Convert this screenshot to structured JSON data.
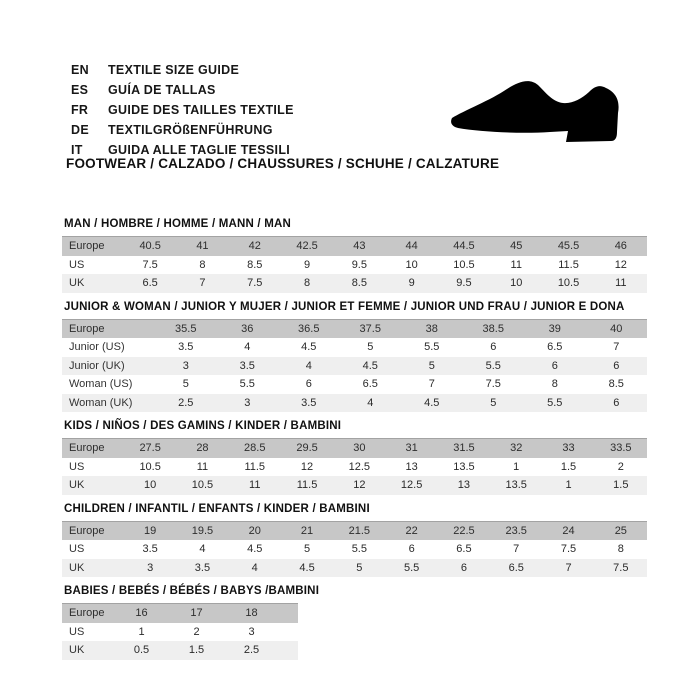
{
  "header": {
    "languages": [
      {
        "code": "EN",
        "text": "TEXTILE SIZE GUIDE"
      },
      {
        "code": "ES",
        "text": "GUÍA DE TALLAS"
      },
      {
        "code": "FR",
        "text": "GUIDE DES TAILLES TEXTILE"
      },
      {
        "code": "DE",
        "text": "TEXTILGRÖßENFÜHRUNG"
      },
      {
        "code": "IT",
        "text": "GUIDA ALLE TAGLIE TESSILI"
      }
    ],
    "category_heading": "FOOTWEAR / CALZADO / CHAUSSURES / SCHUHE / CALZATURE",
    "icon": "dress-shoe-silhouette"
  },
  "colors": {
    "background": "#ffffff",
    "header_row_bg": "#c7c7c7",
    "alt_row_bg": "#efefef",
    "text": "#1c1c1c",
    "shoe_icon": "#000000"
  },
  "chart_data": [
    {
      "type": "table",
      "title": "MAN / HOMBRE / HOMME / MANN / MAN",
      "header": {
        "label": "Europe",
        "values": [
          "40.5",
          "41",
          "42",
          "42.5",
          "43",
          "44",
          "44.5",
          "45",
          "45.5",
          "46"
        ]
      },
      "rows": [
        {
          "label": "US",
          "values": [
            "7.5",
            "8",
            "8.5",
            "9",
            "9.5",
            "10",
            "10.5",
            "11",
            "11.5",
            "12"
          ]
        },
        {
          "label": "UK",
          "values": [
            "6.5",
            "7",
            "7.5",
            "8",
            "8.5",
            "9",
            "9.5",
            "10",
            "10.5",
            "11"
          ]
        }
      ]
    },
    {
      "type": "table",
      "title": "JUNIOR & WOMAN / JUNIOR Y MUJER / JUNIOR ET FEMME / JUNIOR UND FRAU / JUNIOR E DONA",
      "header": {
        "label": "Europe",
        "values": [
          "35.5",
          "36",
          "36.5",
          "37.5",
          "38",
          "38.5",
          "39",
          "40"
        ]
      },
      "rows": [
        {
          "label": "Junior (US)",
          "values": [
            "3.5",
            "4",
            "4.5",
            "5",
            "5.5",
            "6",
            "6.5",
            "7"
          ]
        },
        {
          "label": "Junior (UK)",
          "values": [
            "3",
            "3.5",
            "4",
            "4.5",
            "5",
            "5.5",
            "6",
            "6"
          ]
        },
        {
          "label": "Woman (US)",
          "values": [
            "5",
            "5.5",
            "6",
            "6.5",
            "7",
            "7.5",
            "8",
            "8.5"
          ]
        },
        {
          "label": "Woman (UK)",
          "values": [
            "2.5",
            "3",
            "3.5",
            "4",
            "4.5",
            "5",
            "5.5",
            "6"
          ]
        }
      ]
    },
    {
      "type": "table",
      "title": "KIDS / NIÑOS / DES GAMINS / KINDER / BAMBINI",
      "header": {
        "label": "Europe",
        "values": [
          "27.5",
          "28",
          "28.5",
          "29.5",
          "30",
          "31",
          "31.5",
          "32",
          "33",
          "33.5"
        ]
      },
      "rows": [
        {
          "label": "US",
          "values": [
            "10.5",
            "11",
            "11.5",
            "12",
            "12.5",
            "13",
            "13.5",
            "1",
            "1.5",
            "2"
          ]
        },
        {
          "label": "UK",
          "values": [
            "10",
            "10.5",
            "11",
            "11.5",
            "12",
            "12.5",
            "13",
            "13.5",
            "1",
            "1.5"
          ]
        }
      ]
    },
    {
      "type": "table",
      "title": "CHILDREN / INFANTIL / ENFANTS / KINDER / BAMBINI",
      "header": {
        "label": "Europe",
        "values": [
          "19",
          "19.5",
          "20",
          "21",
          "21.5",
          "22",
          "22.5",
          "23.5",
          "24",
          "25"
        ]
      },
      "rows": [
        {
          "label": "US",
          "values": [
            "3.5",
            "4",
            "4.5",
            "5",
            "5.5",
            "6",
            "6.5",
            "7",
            "7.5",
            "8"
          ]
        },
        {
          "label": "UK",
          "values": [
            "3",
            "3.5",
            "4",
            "4.5",
            "5",
            "5.5",
            "6",
            "6.5",
            "7",
            "7.5"
          ]
        }
      ]
    },
    {
      "type": "table",
      "title": "BABIES  / BEBÉS / BÉBÉS / BABYS /BAMBINI",
      "header": {
        "label": "Europe",
        "values": [
          "16",
          "17",
          "18"
        ]
      },
      "rows": [
        {
          "label": "US",
          "values": [
            "1",
            "2",
            "3"
          ]
        },
        {
          "label": "UK",
          "values": [
            "0.5",
            "1.5",
            "2.5"
          ]
        }
      ]
    }
  ]
}
